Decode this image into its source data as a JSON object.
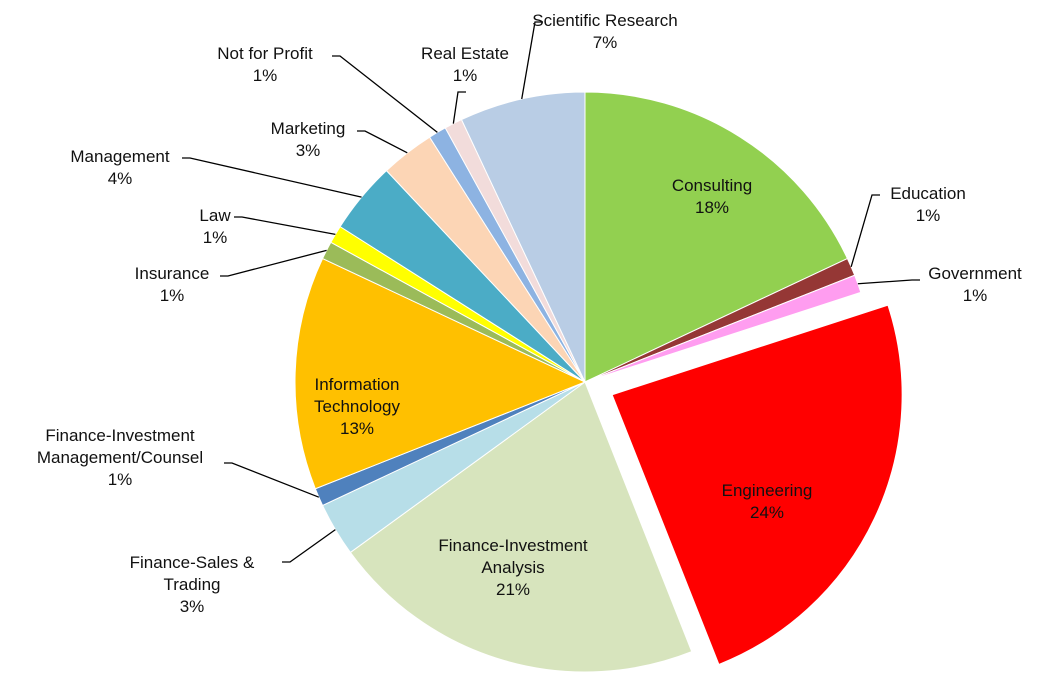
{
  "chart_data": {
    "type": "pie",
    "categories": [
      "Consulting",
      "Education",
      "Government",
      "Engineering",
      "Finance-Investment Analysis",
      "Finance-Sales & Trading",
      "Finance-Investment Management/Counsel",
      "Information Technology",
      "Insurance",
      "Law",
      "Management",
      "Marketing",
      "Not for Profit",
      "Real Estate",
      "Scientific Research"
    ],
    "values": [
      18,
      1,
      1,
      24,
      21,
      3,
      1,
      13,
      1,
      1,
      4,
      3,
      1,
      1,
      7
    ],
    "value_labels": [
      "18%",
      "1%",
      "1%",
      "24%",
      "21%",
      "3%",
      "1%",
      "13%",
      "1%",
      "1%",
      "4%",
      "3%",
      "1%",
      "1%",
      "7%"
    ],
    "colors": [
      "#92d050",
      "#953735",
      "#ff9df0",
      "#ff0000",
      "#d7e4bd",
      "#b7dee8",
      "#4f81bd",
      "#ffc000",
      "#9bbb59",
      "#ffff00",
      "#4bacc6",
      "#fcd5b5",
      "#8db3e2",
      "#f2dcdb",
      "#b9cde5"
    ]
  }
}
